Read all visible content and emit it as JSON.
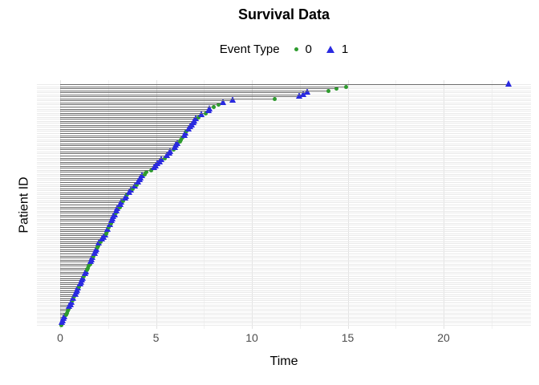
{
  "title": "Survival Data",
  "legend": {
    "title": "Event Type",
    "items": [
      {
        "label": "0",
        "shape": "circle",
        "color": "#2e9b2e"
      },
      {
        "label": "1",
        "shape": "triangle",
        "color": "#2a2ae0"
      }
    ]
  },
  "axes": {
    "x_label": "Time",
    "y_label": "Patient ID",
    "x_ticks": [
      0,
      5,
      10,
      15,
      20
    ]
  },
  "colors": {
    "event0_green": "#2e9b2e",
    "event1_blue": "#2a2ae0",
    "segment_gray": "#6b6b6b",
    "row_gridline": "#eaeaea",
    "major_gridline": "#e2e2e2",
    "minor_gridline": "#f1f1f1",
    "tick_text": "#4d4d4d"
  },
  "chart_data": {
    "type": "scatter",
    "subtype": "patient-event-timeline",
    "title": "Survival Data",
    "xlabel": "Time",
    "ylabel": "Patient ID",
    "xlim": [
      0,
      24.5
    ],
    "x_ticks": [
      0,
      5,
      10,
      15,
      20
    ],
    "x_minor_gridlines": [
      2.5,
      7.5,
      12.5,
      17.5,
      22.5
    ],
    "grid": true,
    "legend_position": "top",
    "n_patients": 119,
    "encoding": "points ordered bottom row (shortest time) to top row (longest); each entry [time, event_type]; event 0 = small green circle, event 1 = blue triangle; gray horizontal segment drawn from time 0 to event time; y axis has no tick labels",
    "points": [
      [
        0.05,
        0
      ],
      [
        0.1,
        1
      ],
      [
        0.15,
        1
      ],
      [
        0.2,
        1
      ],
      [
        0.25,
        1
      ],
      [
        0.3,
        0
      ],
      [
        0.35,
        0
      ],
      [
        0.4,
        0
      ],
      [
        0.45,
        0
      ],
      [
        0.5,
        1
      ],
      [
        0.55,
        1
      ],
      [
        0.6,
        1
      ],
      [
        0.65,
        0
      ],
      [
        0.7,
        1
      ],
      [
        0.75,
        0
      ],
      [
        0.8,
        1
      ],
      [
        0.85,
        1
      ],
      [
        0.9,
        1
      ],
      [
        0.95,
        1
      ],
      [
        1.0,
        0
      ],
      [
        1.05,
        1
      ],
      [
        1.1,
        1
      ],
      [
        1.15,
        1
      ],
      [
        1.2,
        1
      ],
      [
        1.25,
        0
      ],
      [
        1.3,
        1
      ],
      [
        1.35,
        1
      ],
      [
        1.4,
        0
      ],
      [
        1.45,
        0
      ],
      [
        1.5,
        0
      ],
      [
        1.55,
        0
      ],
      [
        1.6,
        1
      ],
      [
        1.65,
        1
      ],
      [
        1.7,
        1
      ],
      [
        1.75,
        0
      ],
      [
        1.8,
        1
      ],
      [
        1.85,
        1
      ],
      [
        1.9,
        1
      ],
      [
        1.95,
        0
      ],
      [
        2.0,
        0
      ],
      [
        2.05,
        1
      ],
      [
        2.1,
        0
      ],
      [
        2.2,
        1
      ],
      [
        2.3,
        1
      ],
      [
        2.35,
        1
      ],
      [
        2.4,
        0
      ],
      [
        2.45,
        0
      ],
      [
        2.5,
        1
      ],
      [
        2.55,
        0
      ],
      [
        2.6,
        1
      ],
      [
        2.65,
        0
      ],
      [
        2.7,
        1
      ],
      [
        2.75,
        1
      ],
      [
        2.8,
        1
      ],
      [
        2.85,
        1
      ],
      [
        2.9,
        0
      ],
      [
        2.95,
        1
      ],
      [
        3.0,
        1
      ],
      [
        3.1,
        0
      ],
      [
        3.15,
        1
      ],
      [
        3.2,
        1
      ],
      [
        3.3,
        0
      ],
      [
        3.4,
        1
      ],
      [
        3.45,
        1
      ],
      [
        3.5,
        0
      ],
      [
        3.6,
        1
      ],
      [
        3.7,
        1
      ],
      [
        3.8,
        0
      ],
      [
        3.9,
        1
      ],
      [
        4.0,
        0
      ],
      [
        4.1,
        1
      ],
      [
        4.15,
        1
      ],
      [
        4.2,
        1
      ],
      [
        4.3,
        1
      ],
      [
        4.4,
        0
      ],
      [
        4.5,
        0
      ],
      [
        4.75,
        0
      ],
      [
        4.9,
        1
      ],
      [
        5.0,
        1
      ],
      [
        5.1,
        1
      ],
      [
        5.2,
        1
      ],
      [
        5.3,
        1
      ],
      [
        5.45,
        0
      ],
      [
        5.6,
        1
      ],
      [
        5.7,
        1
      ],
      [
        5.75,
        1
      ],
      [
        5.9,
        0
      ],
      [
        6.0,
        1
      ],
      [
        6.05,
        1
      ],
      [
        6.15,
        1
      ],
      [
        6.25,
        0
      ],
      [
        6.3,
        0
      ],
      [
        6.4,
        0
      ],
      [
        6.5,
        1
      ],
      [
        6.55,
        1
      ],
      [
        6.6,
        0
      ],
      [
        6.7,
        1
      ],
      [
        6.8,
        1
      ],
      [
        6.9,
        1
      ],
      [
        6.95,
        1
      ],
      [
        7.0,
        1
      ],
      [
        7.1,
        1
      ],
      [
        7.2,
        0
      ],
      [
        7.4,
        1
      ],
      [
        7.6,
        0
      ],
      [
        7.75,
        1
      ],
      [
        7.8,
        1
      ],
      [
        8.0,
        0
      ],
      [
        8.25,
        0
      ],
      [
        8.5,
        1
      ],
      [
        9.0,
        1
      ],
      [
        11.2,
        0
      ],
      [
        12.5,
        1
      ],
      [
        12.7,
        1
      ],
      [
        12.9,
        1
      ],
      [
        14.0,
        0
      ],
      [
        14.4,
        0
      ],
      [
        14.9,
        0
      ],
      [
        23.4,
        1
      ]
    ]
  }
}
